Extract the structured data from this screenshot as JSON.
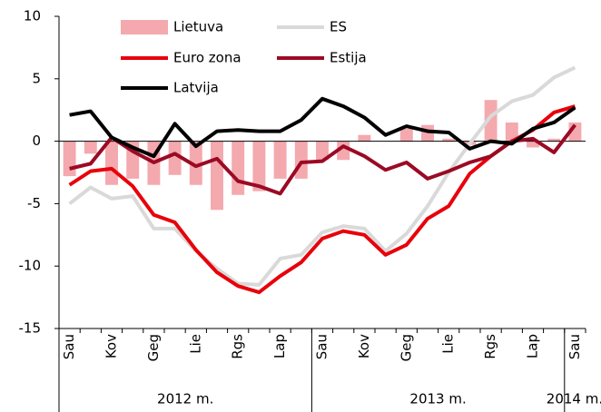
{
  "chart_data": {
    "type": "bar_line",
    "categories": [
      "Sau",
      null,
      "Kov",
      null,
      "Geg",
      null,
      "Lie",
      null,
      "Rgs",
      null,
      "Lap",
      null,
      "Sau",
      null,
      "Kov",
      null,
      "Geg",
      null,
      "Lie",
      null,
      "Rgs",
      null,
      "Lap",
      null,
      "Sau"
    ],
    "groups": [
      {
        "label": "2012 m.",
        "start": 0,
        "end": 11
      },
      {
        "label": "2013 m.",
        "start": 12,
        "end": 23
      },
      {
        "label": "2014 m.",
        "start": 24,
        "end": 24
      }
    ],
    "series": [
      {
        "name": "Lietuva",
        "kind": "bar",
        "color": "#f4a9ae",
        "values": [
          -2.8,
          -1.0,
          -3.5,
          -3.0,
          -3.5,
          -2.7,
          -3.5,
          -5.5,
          -4.3,
          -4.0,
          -3.0,
          -3.0,
          -1.5,
          -1.5,
          0.5,
          0.0,
          1.0,
          1.3,
          0.2,
          -0.3,
          3.3,
          1.5,
          -0.5,
          0.2,
          1.5
        ]
      },
      {
        "name": "ES",
        "kind": "line",
        "color": "#d9d9d9",
        "values": [
          -5.0,
          -3.7,
          -4.6,
          -4.4,
          -7.0,
          -7.0,
          -8.8,
          -10.2,
          -11.4,
          -11.5,
          -9.4,
          -9.1,
          -7.3,
          -6.8,
          -7.0,
          -8.8,
          -7.4,
          -5.2,
          -2.5,
          -0.2,
          2.0,
          3.2,
          3.7,
          5.1,
          5.9
        ]
      },
      {
        "name": "Euro zona",
        "kind": "line",
        "color": "#e8000b",
        "values": [
          -3.5,
          -2.4,
          -2.2,
          -3.6,
          -5.9,
          -6.5,
          -8.7,
          -10.5,
          -11.6,
          -12.1,
          -10.8,
          -9.7,
          -7.8,
          -7.2,
          -7.5,
          -9.1,
          -8.3,
          -6.2,
          -5.2,
          -2.6,
          -1.2,
          0.0,
          0.9,
          2.3,
          2.8
        ]
      },
      {
        "name": "Estija",
        "kind": "line",
        "color": "#9b0a24",
        "values": [
          -2.2,
          -1.8,
          0.3,
          -0.8,
          -1.7,
          -1.0,
          -2.0,
          -1.4,
          -3.2,
          -3.6,
          -4.2,
          -1.7,
          -1.6,
          -0.4,
          -1.2,
          -2.3,
          -1.7,
          -3.0,
          -2.4,
          -1.7,
          -1.2,
          0.0,
          0.2,
          -0.9,
          1.3
        ]
      },
      {
        "name": "Latvija",
        "kind": "line",
        "color": "#000000",
        "values": [
          2.1,
          2.4,
          0.3,
          -0.5,
          -1.2,
          1.4,
          -0.4,
          0.8,
          0.9,
          0.8,
          0.8,
          1.7,
          3.4,
          2.8,
          1.9,
          0.5,
          1.2,
          0.8,
          0.7,
          -0.6,
          0.0,
          -0.2,
          1.0,
          1.5,
          2.7
        ]
      }
    ],
    "ylim": [
      -15,
      10
    ],
    "yticks": [
      -15,
      -10,
      -5,
      0,
      5,
      10
    ],
    "grid": false,
    "legend": "top"
  }
}
